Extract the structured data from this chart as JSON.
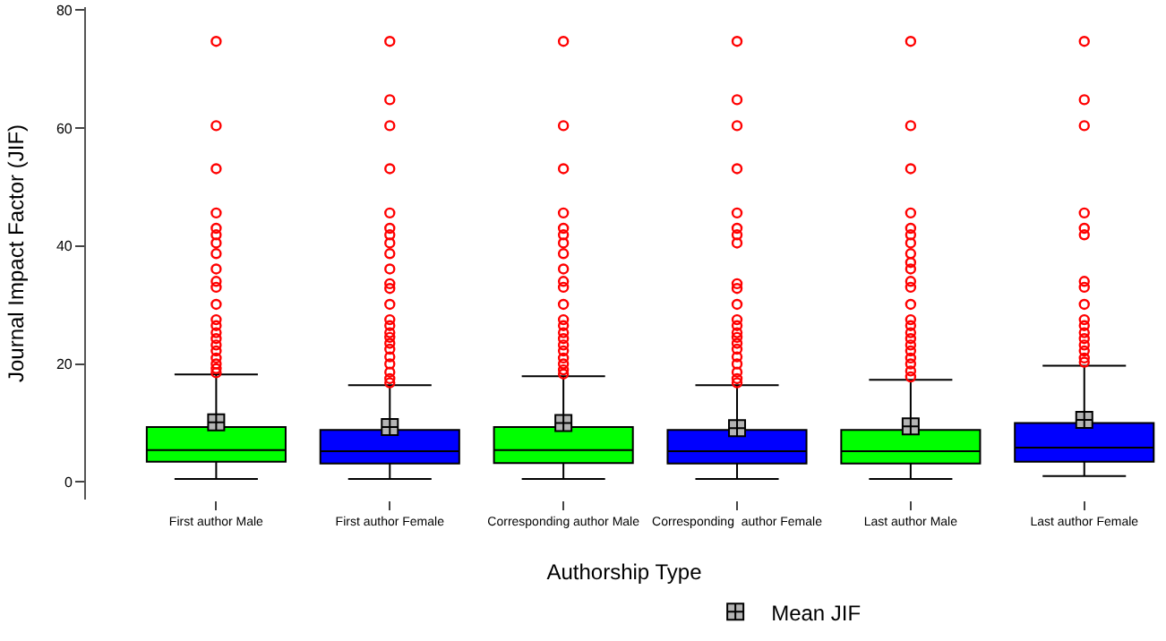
{
  "chart_data": {
    "type": "box",
    "xlabel": "Authorship Type",
    "ylabel": "Journal Impact Factor (JIF)",
    "categories": [
      "First author Male",
      "First author Female",
      "Corresponding author Male",
      "Corresponding  author Female",
      "Last author Male",
      "Last author Female"
    ],
    "colors": [
      "#00ff00",
      "#0000ff",
      "#00ff00",
      "#0000ff",
      "#00ff00",
      "#0000ff"
    ],
    "boxes": [
      {
        "low": 0.5,
        "q1": 3.4,
        "median": 5.4,
        "q3": 9.3,
        "high": 18.2,
        "outliers": [
          74.7,
          60.4,
          53.1,
          45.6,
          43.0,
          41.9,
          40.5,
          38.7,
          36.1,
          34.0,
          33.0,
          30.1,
          27.5,
          26.5,
          25.3,
          24.3,
          23.2,
          22.2,
          21.0,
          20.0,
          19.2,
          18.5
        ]
      },
      {
        "low": 0.5,
        "q1": 3.1,
        "median": 5.2,
        "q3": 8.8,
        "high": 16.4,
        "outliers": [
          74.7,
          64.8,
          60.4,
          53.1,
          45.6,
          43.0,
          41.9,
          40.5,
          38.7,
          36.1,
          33.6,
          32.8,
          30.1,
          27.5,
          26.5,
          25.3,
          24.5,
          23.5,
          22.5,
          21.2,
          20.0,
          18.6,
          17.5,
          16.8
        ]
      },
      {
        "low": 0.5,
        "q1": 3.2,
        "median": 5.4,
        "q3": 9.3,
        "high": 17.9,
        "outliers": [
          74.7,
          60.4,
          53.1,
          45.6,
          43.0,
          41.9,
          40.5,
          38.7,
          36.1,
          34.0,
          33.0,
          30.1,
          27.5,
          26.5,
          25.3,
          24.3,
          23.2,
          22.2,
          21.0,
          20.0,
          19.0,
          18.3
        ]
      },
      {
        "low": 0.5,
        "q1": 3.1,
        "median": 5.2,
        "q3": 8.8,
        "high": 16.4,
        "outliers": [
          74.7,
          64.8,
          60.4,
          53.1,
          45.6,
          43.0,
          41.9,
          40.5,
          33.6,
          32.8,
          30.1,
          27.5,
          26.5,
          25.3,
          24.5,
          23.5,
          22.5,
          21.2,
          20.0,
          18.6,
          17.5,
          16.8
        ]
      },
      {
        "low": 0.5,
        "q1": 3.1,
        "median": 5.2,
        "q3": 8.8,
        "high": 17.3,
        "outliers": [
          74.7,
          60.4,
          53.1,
          45.6,
          43.0,
          41.9,
          40.5,
          38.7,
          37.2,
          36.1,
          34.0,
          33.0,
          30.1,
          27.5,
          26.5,
          25.3,
          24.3,
          23.2,
          22.2,
          21.0,
          20.0,
          18.8,
          17.8
        ]
      },
      {
        "low": 1.0,
        "q1": 3.4,
        "median": 5.8,
        "q3": 10.0,
        "high": 19.7,
        "outliers": [
          74.7,
          64.8,
          60.4,
          45.6,
          43.0,
          41.9,
          34.0,
          33.0,
          30.1,
          27.5,
          26.5,
          25.3,
          24.3,
          23.2,
          22.2,
          21.0,
          20.3
        ]
      }
    ],
    "series": [
      {
        "name": "Mean JIF",
        "type": "scatter",
        "marker": "cross",
        "color": "#b4b4b4",
        "x": [
          "First author Male",
          "First author Female",
          "Corresponding author Male",
          "Corresponding  author Female",
          "Last author Male",
          "Last author Female"
        ],
        "values": [
          10.1,
          9.3,
          10.0,
          9.1,
          9.4,
          10.5
        ]
      }
    ],
    "ylim": [
      -3,
      80.5
    ],
    "yticks": [
      0,
      20,
      40,
      60,
      80
    ],
    "legend": "bottom"
  }
}
